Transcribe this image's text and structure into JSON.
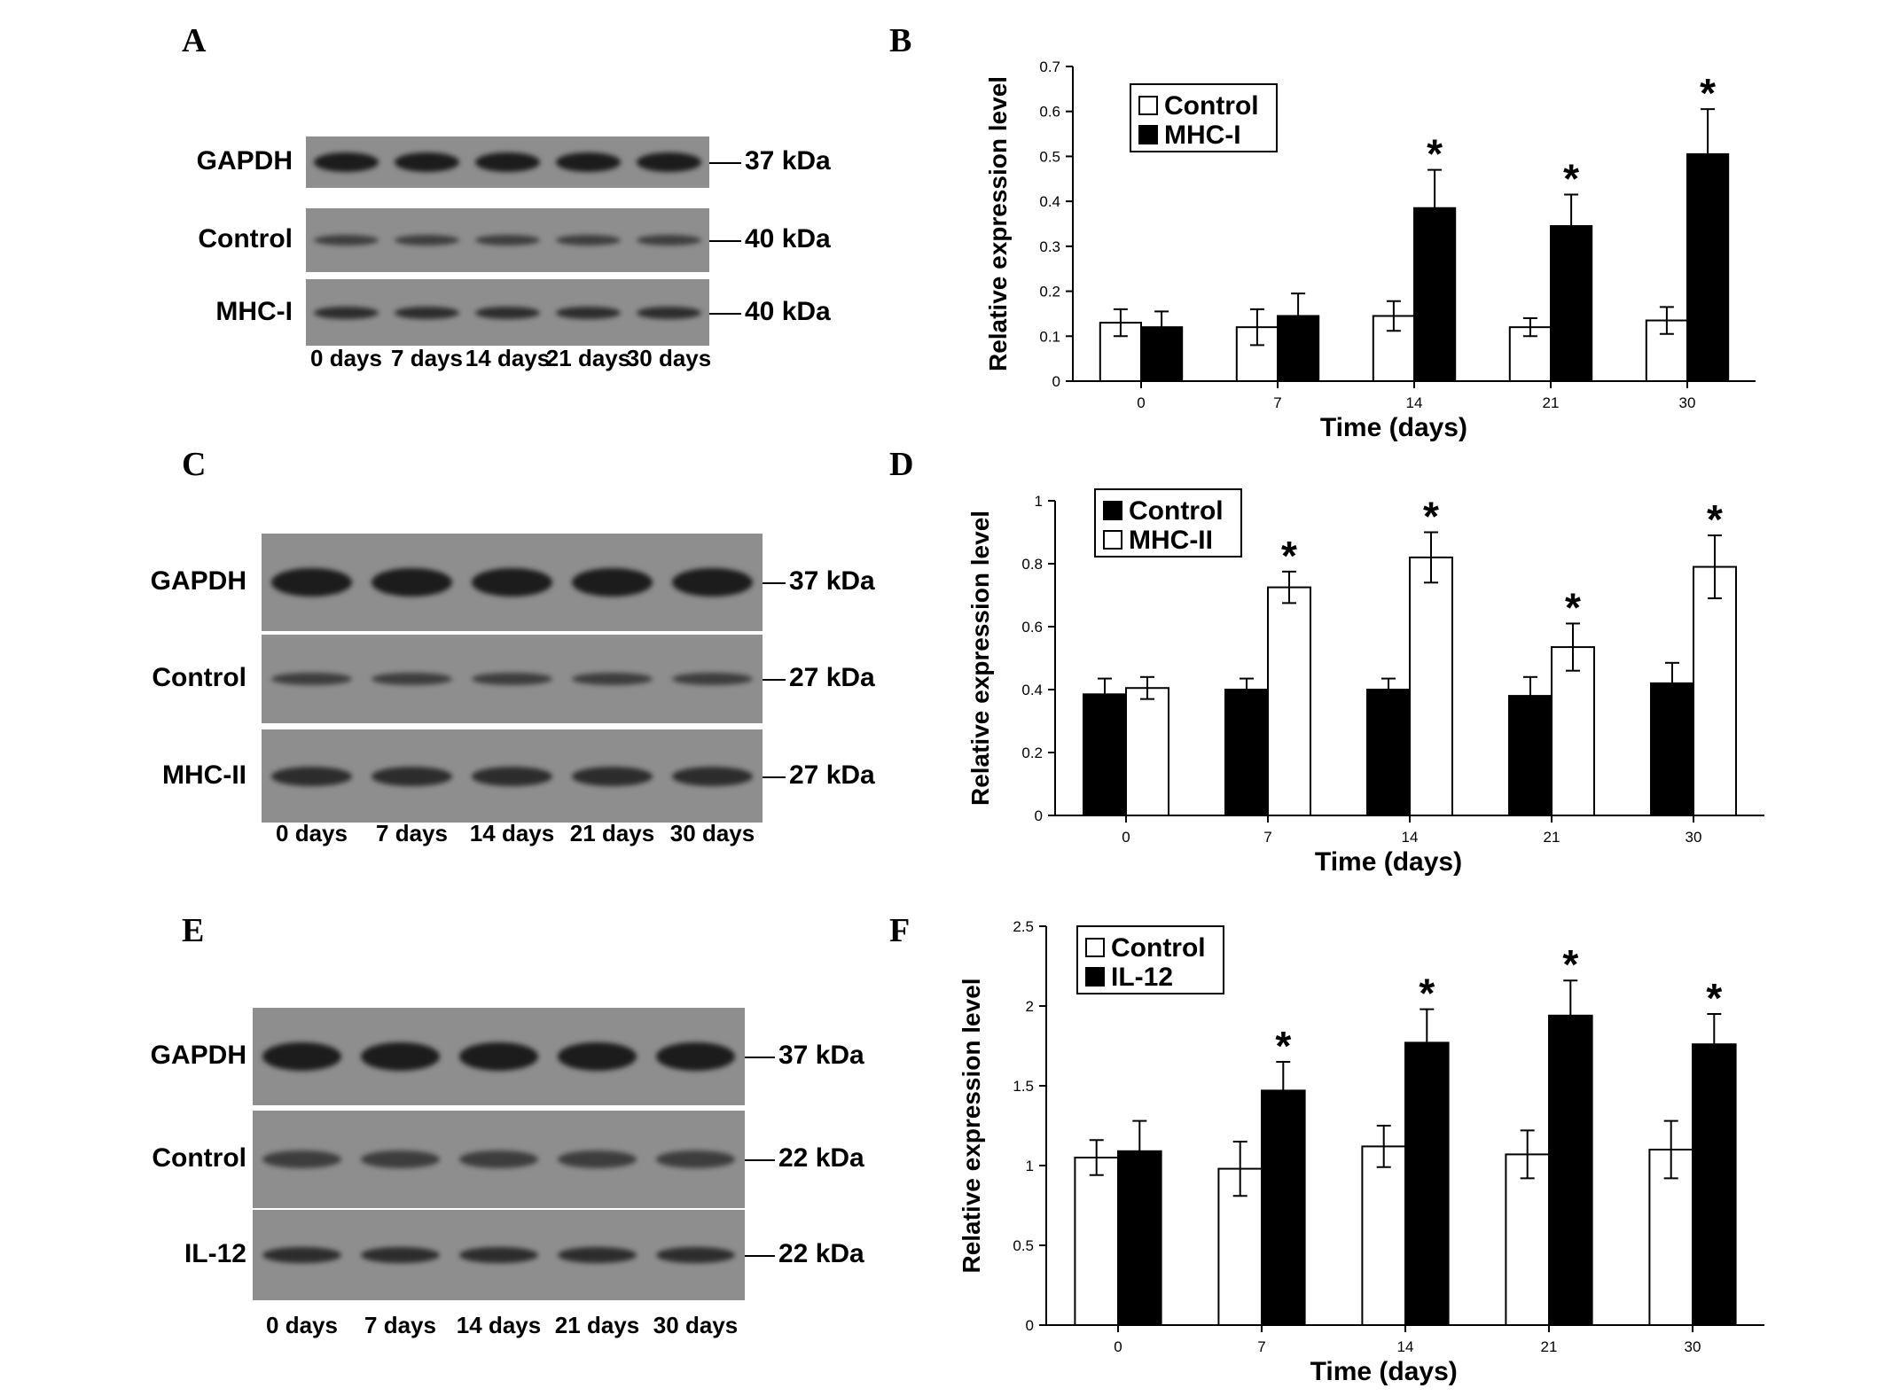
{
  "panels": {
    "A": "A",
    "B": "B",
    "C": "C",
    "D": "D",
    "E": "E",
    "F": "F"
  },
  "blot_A": {
    "rows": [
      {
        "label": "GAPDH",
        "kda": "37 kDa"
      },
      {
        "label": "Control",
        "kda": "40 kDa"
      },
      {
        "label": "MHC-I",
        "kda": "40 kDa"
      }
    ],
    "lanes": [
      "0 days",
      "7 days",
      "14 days",
      "21 days",
      "30 days"
    ]
  },
  "blot_C": {
    "rows": [
      {
        "label": "GAPDH",
        "kda": "37 kDa"
      },
      {
        "label": "Control",
        "kda": "27 kDa"
      },
      {
        "label": "MHC-II",
        "kda": "27 kDa"
      }
    ],
    "lanes": [
      "0 days",
      "7 days",
      "14 days",
      "21 days",
      "30 days"
    ]
  },
  "blot_E": {
    "rows": [
      {
        "label": "GAPDH",
        "kda": "37 kDa"
      },
      {
        "label": "Control",
        "kda": "22 kDa"
      },
      {
        "label": "IL-12",
        "kda": "22 kDa"
      }
    ],
    "lanes": [
      "0 days",
      "7 days",
      "14 days",
      "21 days",
      "30 days"
    ]
  },
  "chart_data": [
    {
      "id": "B",
      "type": "bar",
      "categories": [
        "0",
        "7",
        "14",
        "21",
        "30"
      ],
      "series": [
        {
          "name": "Control",
          "fill": "#ffffff",
          "values": [
            0.13,
            0.12,
            0.145,
            0.12,
            0.135
          ],
          "errors": [
            0.03,
            0.04,
            0.033,
            0.02,
            0.03
          ]
        },
        {
          "name": "MHC-I",
          "fill": "#000000",
          "values": [
            0.12,
            0.145,
            0.385,
            0.345,
            0.505
          ],
          "errors": [
            0.035,
            0.05,
            0.085,
            0.07,
            0.1
          ]
        }
      ],
      "significant": [
        false,
        false,
        true,
        true,
        true
      ],
      "star": "*",
      "xlabel": "Time (days)",
      "ylabel": "Relative expression level",
      "ylim": [
        0,
        0.7
      ],
      "yticks": [
        "0",
        "0.1",
        "0.2",
        "0.3",
        "0.4",
        "0.5",
        "0.6",
        "0.7"
      ],
      "legend": "top-left"
    },
    {
      "id": "D",
      "type": "bar",
      "categories": [
        "0",
        "7",
        "14",
        "21",
        "30"
      ],
      "series": [
        {
          "name": "Control",
          "fill": "#000000",
          "values": [
            0.385,
            0.4,
            0.4,
            0.38,
            0.42
          ],
          "errors": [
            0.05,
            0.035,
            0.035,
            0.06,
            0.065
          ]
        },
        {
          "name": "MHC-II",
          "fill": "#ffffff",
          "values": [
            0.405,
            0.725,
            0.82,
            0.535,
            0.79
          ],
          "errors": [
            0.035,
            0.05,
            0.08,
            0.075,
            0.1
          ]
        }
      ],
      "significant": [
        false,
        true,
        true,
        true,
        true
      ],
      "star": "*",
      "xlabel": "Time (days)",
      "ylabel": "Relative expression level",
      "ylim": [
        0,
        1
      ],
      "yticks": [
        "0",
        "0.2",
        "0.4",
        "0.6",
        "0.8",
        "1"
      ],
      "legend": "top-left"
    },
    {
      "id": "F",
      "type": "bar",
      "categories": [
        "0",
        "7",
        "14",
        "21",
        "30"
      ],
      "series": [
        {
          "name": "Control",
          "fill": "#ffffff",
          "values": [
            1.05,
            0.98,
            1.12,
            1.07,
            1.1
          ],
          "errors": [
            0.11,
            0.17,
            0.13,
            0.15,
            0.18
          ]
        },
        {
          "name": "IL-12",
          "fill": "#000000",
          "values": [
            1.09,
            1.47,
            1.77,
            1.94,
            1.76
          ],
          "errors": [
            0.19,
            0.18,
            0.21,
            0.22,
            0.19
          ]
        }
      ],
      "significant": [
        false,
        true,
        true,
        true,
        true
      ],
      "star": "*",
      "xlabel": "Time (days)",
      "ylabel": "Relative expression level",
      "ylim": [
        0,
        2.5
      ],
      "yticks": [
        "0",
        "0.5",
        "1",
        "1.5",
        "2",
        "2.5"
      ],
      "legend": "top-left"
    }
  ]
}
